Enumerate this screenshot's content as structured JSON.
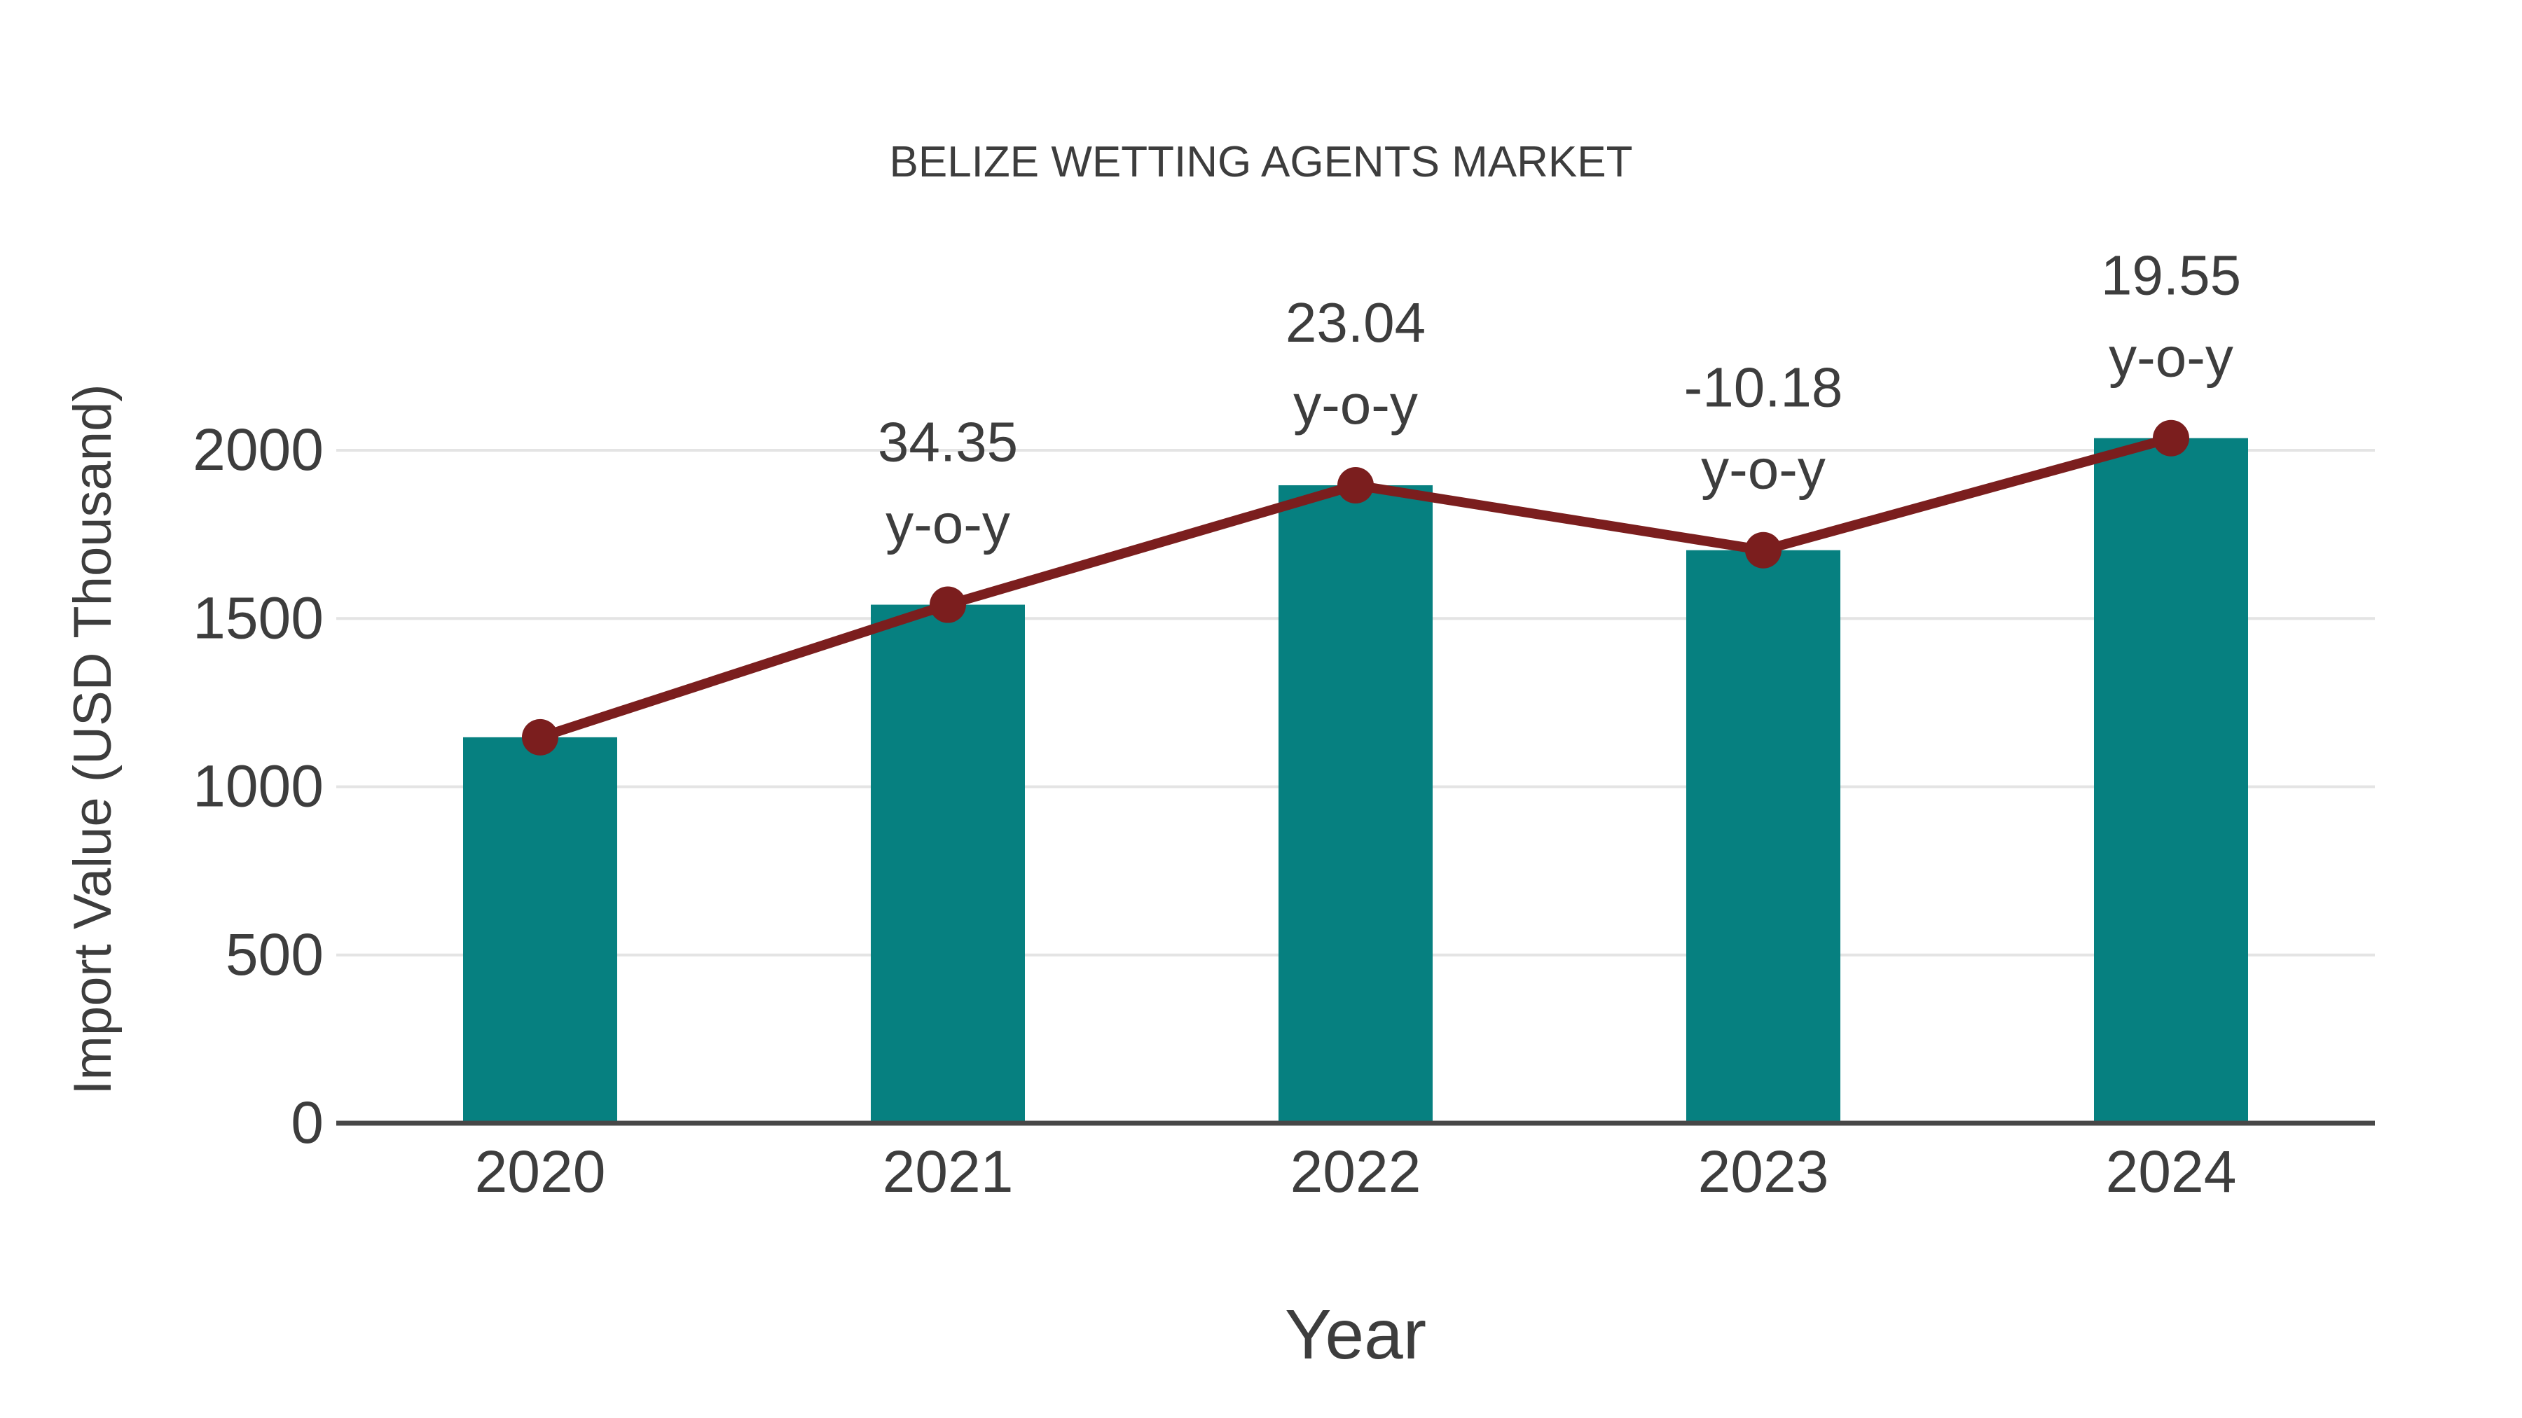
{
  "title": "BELIZE WETTING AGENTS MARKET",
  "chart_data": {
    "type": "bar",
    "title": "BELIZE WETTING AGENTS MARKET",
    "xlabel": "Year",
    "ylabel": "Import Value (USD Thousand)",
    "categories": [
      "2020",
      "2021",
      "2022",
      "2023",
      "2024"
    ],
    "series": [
      {
        "name": "Import Value (USD Thousand)",
        "type": "bar",
        "color": "#068080",
        "values": [
          1147,
          1541,
          1896,
          1703,
          2036
        ]
      },
      {
        "name": "y-o-y growth (%)",
        "type": "line",
        "color": "#7b1e1e",
        "values": [
          null,
          34.35,
          23.04,
          -10.18,
          19.55
        ],
        "plotted_on": "bar_values"
      }
    ],
    "line_labels": [
      null,
      "34.35",
      "23.04",
      "-10.18",
      "19.55"
    ],
    "line_label_suffix": "y-o-y",
    "yticks": [
      0,
      500,
      1000,
      1500,
      2000
    ],
    "ylim": [
      0,
      2400
    ],
    "grid": true,
    "legend": "none"
  },
  "colors": {
    "bar": "#068080",
    "line": "#7b1e1e",
    "grid": "#e4e4e4",
    "axis": "#474747",
    "text": "#3d3d3d"
  }
}
